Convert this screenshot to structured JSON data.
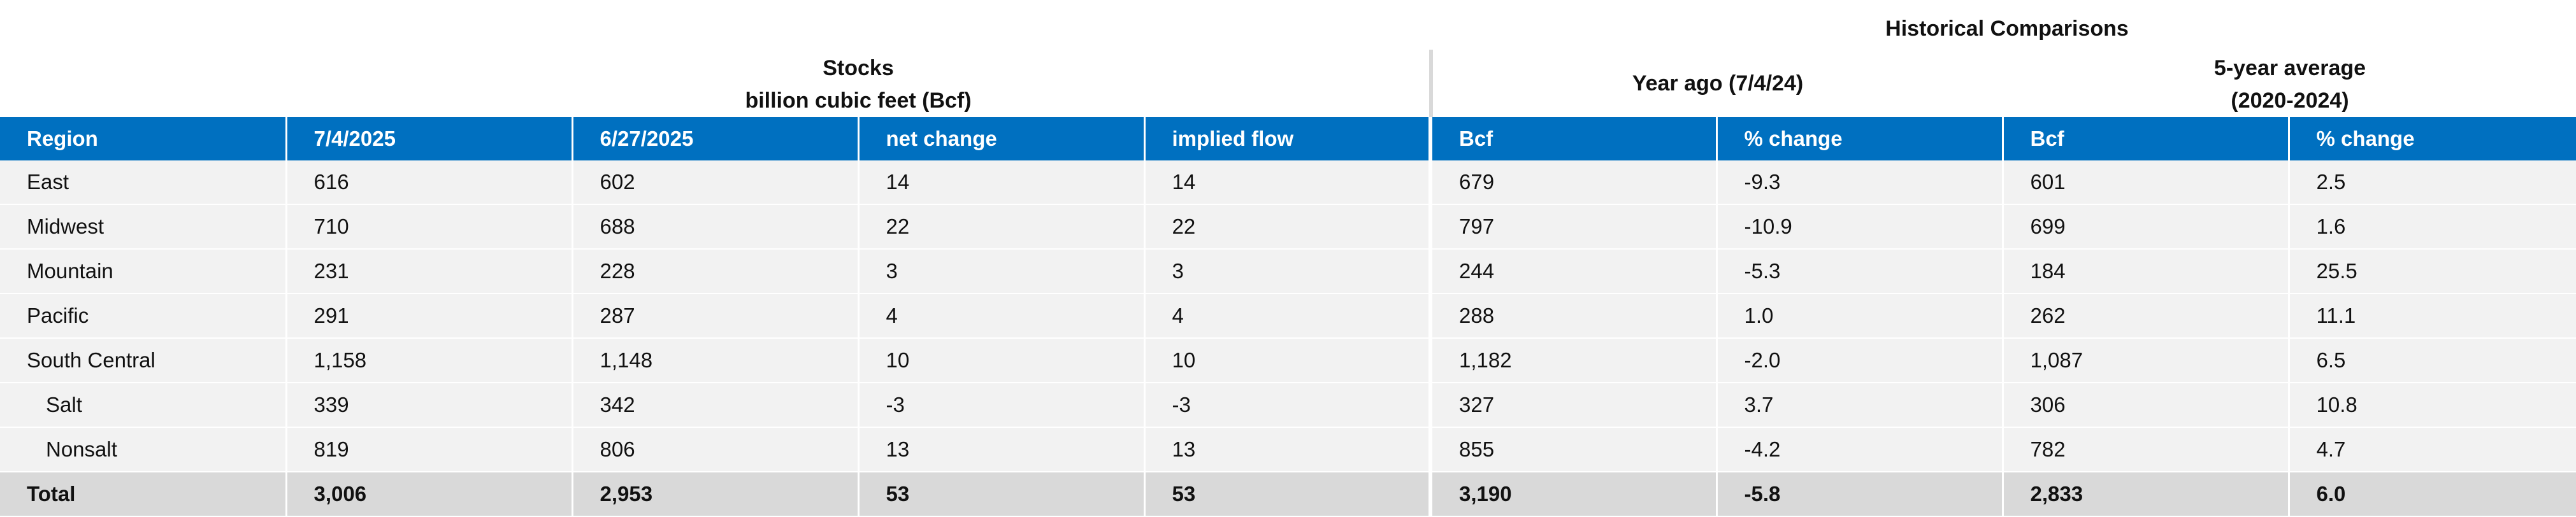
{
  "headers": {
    "historical": "Historical Comparisons",
    "stocks_line1": "Stocks",
    "stocks_line2": "billion cubic feet (Bcf)",
    "year_ago": "Year ago (7/4/24)",
    "five_year_line1": "5-year average",
    "five_year_line2": "(2020-2024)"
  },
  "columns": [
    "Region",
    "7/4/2025",
    "6/27/2025",
    "net change",
    "implied flow",
    "Bcf",
    "% change",
    "Bcf",
    "% change"
  ],
  "rows": [
    {
      "region": "East",
      "d1": "616",
      "d2": "602",
      "net": "14",
      "flow": "14",
      "ya_bcf": "679",
      "ya_pct": "-9.3",
      "avg_bcf": "601",
      "avg_pct": "2.5"
    },
    {
      "region": "Midwest",
      "d1": "710",
      "d2": "688",
      "net": "22",
      "flow": "22",
      "ya_bcf": "797",
      "ya_pct": "-10.9",
      "avg_bcf": "699",
      "avg_pct": "1.6"
    },
    {
      "region": "Mountain",
      "d1": "231",
      "d2": "228",
      "net": "3",
      "flow": "3",
      "ya_bcf": "244",
      "ya_pct": "-5.3",
      "avg_bcf": "184",
      "avg_pct": "25.5"
    },
    {
      "region": "Pacific",
      "d1": "291",
      "d2": "287",
      "net": "4",
      "flow": "4",
      "ya_bcf": "288",
      "ya_pct": "1.0",
      "avg_bcf": "262",
      "avg_pct": "11.1"
    },
    {
      "region": "South Central",
      "d1": "1,158",
      "d2": "1,148",
      "net": "10",
      "flow": "10",
      "ya_bcf": "1,182",
      "ya_pct": "-2.0",
      "avg_bcf": "1,087",
      "avg_pct": "6.5"
    },
    {
      "region": "Salt",
      "d1": "339",
      "d2": "342",
      "net": "-3",
      "flow": "-3",
      "ya_bcf": "327",
      "ya_pct": "3.7",
      "avg_bcf": "306",
      "avg_pct": "10.8"
    },
    {
      "region": "Nonsalt",
      "d1": "819",
      "d2": "806",
      "net": "13",
      "flow": "13",
      "ya_bcf": "855",
      "ya_pct": "-4.2",
      "avg_bcf": "782",
      "avg_pct": "4.7"
    }
  ],
  "total": {
    "region": "Total",
    "d1": "3,006",
    "d2": "2,953",
    "net": "53",
    "flow": "53",
    "ya_bcf": "3,190",
    "ya_pct": "-5.8",
    "avg_bcf": "2,833",
    "avg_pct": "6.0"
  }
}
